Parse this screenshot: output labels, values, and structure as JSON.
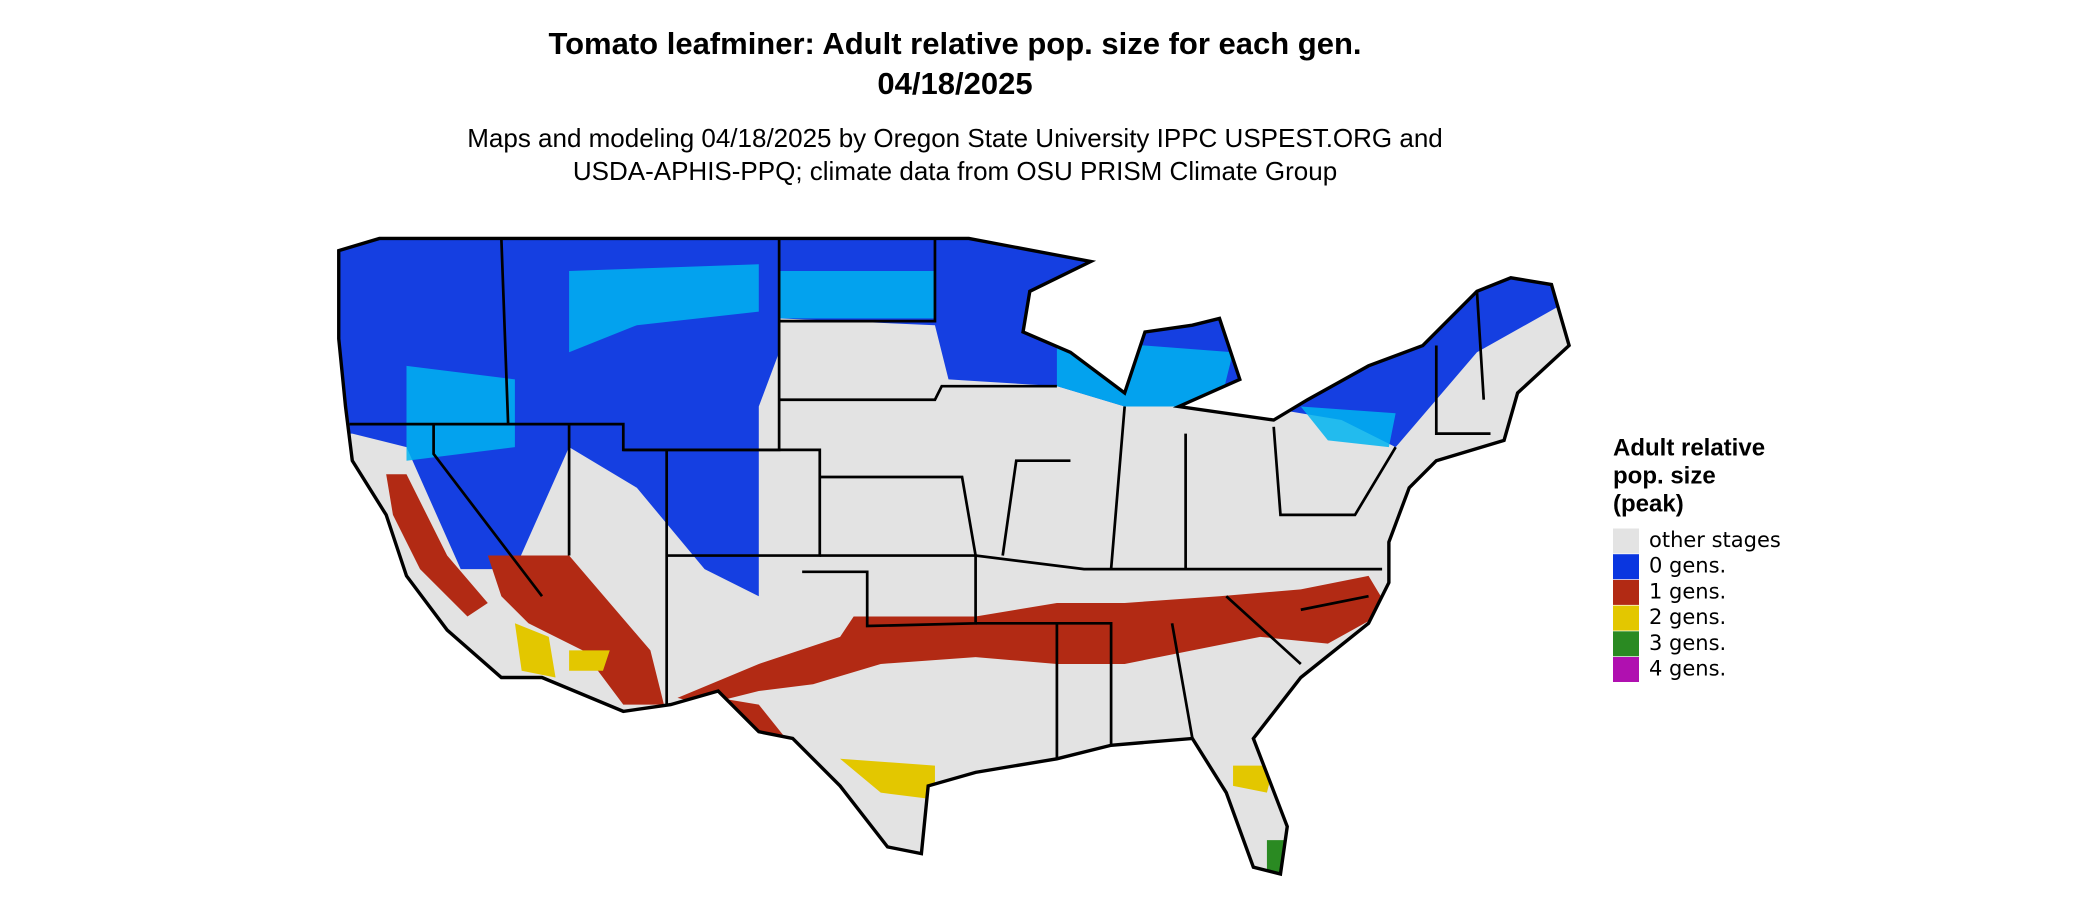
{
  "header": {
    "title": [
      "Tomato leafminer: Adult relative pop. size for each gen.",
      "04/18/2025"
    ],
    "subtitle": [
      "Maps and modeling 04/18/2025 by Oregon State University IPPC USPEST.ORG and",
      "USDA-APHIS-PPQ; climate data from OSU PRISM Climate Group"
    ]
  },
  "legend": {
    "title": [
      "Adult relative",
      "pop. size",
      "(peak)"
    ],
    "items": [
      {
        "label": "other stages",
        "color": "#e3e3e3"
      },
      {
        "label": "0 gens.",
        "color": "#0a36e0"
      },
      {
        "label": "1 gens.",
        "color": "#b22a14"
      },
      {
        "label": "2 gens.",
        "color": "#e3c700"
      },
      {
        "label": "3 gens.",
        "color": "#2a8a22"
      },
      {
        "label": "4 gens.",
        "color": "#b010b0"
      }
    ]
  }
}
